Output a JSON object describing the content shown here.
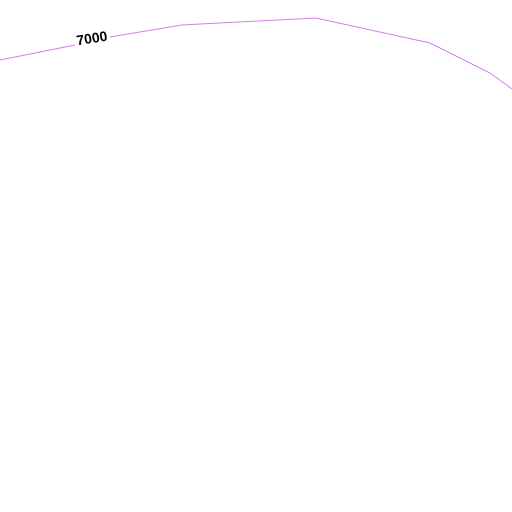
{
  "contour": {
    "label": "7000"
  }
}
